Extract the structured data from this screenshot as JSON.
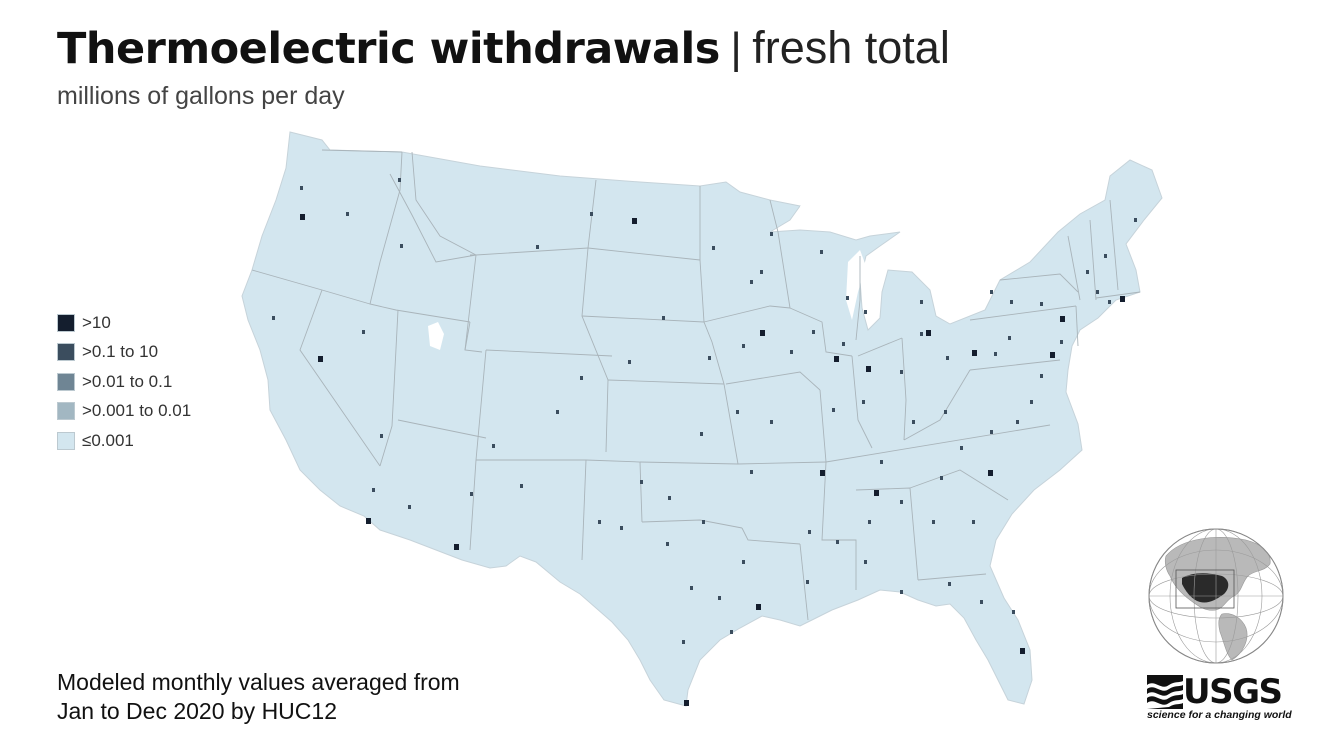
{
  "title": {
    "bold": "Thermoelectric withdrawals",
    "separator": "|",
    "light": "fresh total"
  },
  "subtitle": "millions of gallons per day",
  "legend": [
    {
      "label": ">10",
      "color": "#141e2e"
    },
    {
      "label": ">0.1 to 10",
      "color": "#3b4d5e"
    },
    {
      "label": ">0.01 to 0.1",
      "color": "#6f8594"
    },
    {
      "label": ">0.001 to 0.01",
      "color": "#a2b7c2"
    },
    {
      "label": "≤0.001",
      "color": "#d3e6ef"
    }
  ],
  "note": {
    "line1": "Modeled monthly values averaged from",
    "line2": "Jan to Dec 2020 by HUC12"
  },
  "logo": {
    "name": "USGS",
    "tagline": "science for a changing world"
  },
  "colors": {
    "land": "#d3e6ef",
    "state_border": "#a9b4ba",
    "high": "#141e2e",
    "mid": "#3b4d5e"
  }
}
